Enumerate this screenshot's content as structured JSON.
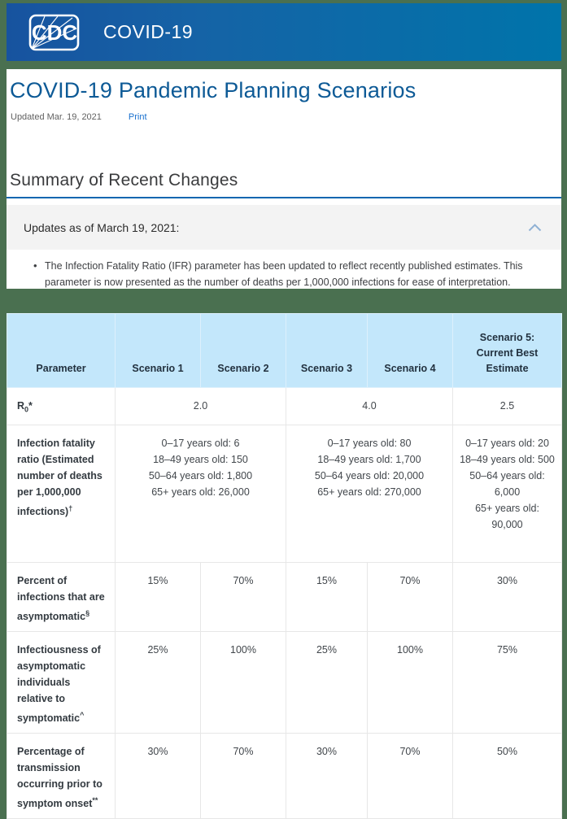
{
  "topbar": {
    "logo_text": "CDC",
    "brand": "COVID-19"
  },
  "page": {
    "title": "COVID-19 Pandemic Planning Scenarios",
    "updated": "Updated Mar. 19, 2021",
    "print_label": "Print"
  },
  "summary": {
    "heading": "Summary of Recent Changes",
    "updates_label": "Updates as of March 19, 2021:",
    "bullet_glyph": "•",
    "bullet": "The Infection Fatality Ratio (IFR) parameter has been updated to reflect recently published estimates. This parameter is now presented as the number of deaths per 1,000,000 infections for ease of interpretation."
  },
  "table": {
    "columns": [
      "Parameter",
      "Scenario 1",
      "Scenario 2",
      "Scenario 3",
      "Scenario 4",
      "Scenario 5: Current Best Estimate"
    ],
    "r0": {
      "label_base": "R",
      "label_sub": "0",
      "label_sup": "*",
      "s12": "2.0",
      "s34": "4.0",
      "s5": "2.5"
    },
    "ifr": {
      "label": "Infection fatality ratio (Estimated number of deaths per 1,000,000 infections)",
      "label_sup": "†",
      "s12_lines": [
        "0–17 years old: 6",
        "18–49 years old: 150",
        "50–64 years old: 1,800",
        "65+ years old: 26,000"
      ],
      "s34_lines": [
        "0–17 years old: 80",
        "18–49 years old: 1,700",
        "50–64 years old: 20,000",
        "65+ years old: 270,000"
      ],
      "s5_lines": [
        "0–17 years old: 20",
        "18–49 years old: 500",
        "50–64 years old: 6,000",
        "65+ years old: 90,000"
      ]
    },
    "asymptomatic": {
      "label": "Percent of infections that are asymptomatic",
      "label_sup": "§",
      "values": [
        "15%",
        "70%",
        "15%",
        "70%",
        "30%"
      ]
    },
    "infectiousness": {
      "label": "Infectiousness of asymptomatic individuals relative to symptomatic",
      "label_sup": "^",
      "values": [
        "25%",
        "100%",
        "25%",
        "100%",
        "75%"
      ]
    },
    "presymptomatic": {
      "label": "Percentage of transmission occurring prior to symptom onset",
      "label_sup": "**",
      "values": [
        "30%",
        "70%",
        "30%",
        "70%",
        "50%"
      ]
    }
  },
  "colors": {
    "frame_green": "#4a7050",
    "header_gradient_left": "#17539f",
    "header_gradient_right": "#0074aa",
    "title_blue": "#0d5a96",
    "link_blue": "#1970ce",
    "rule_blue": "#0c66b0",
    "updates_box_gray": "#f3f3f3",
    "table_header_blue": "#c3e7fb",
    "chevron_blue": "#8fb1d4"
  }
}
